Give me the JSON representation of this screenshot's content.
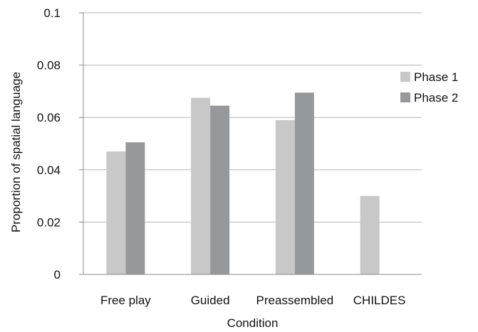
{
  "chart_data": {
    "type": "bar",
    "title": "",
    "xlabel": "Condition",
    "ylabel": "Proportion of spatial language",
    "categories": [
      "Free play",
      "Guided",
      "Preassembled",
      "CHILDES"
    ],
    "series": [
      {
        "name": "Phase 1",
        "color": "#c8c8c9",
        "values": [
          0.047,
          0.0675,
          0.059,
          0.03
        ]
      },
      {
        "name": "Phase 2",
        "color": "#97989b",
        "values": [
          0.0505,
          0.0645,
          0.0695,
          null
        ]
      }
    ],
    "ylim": [
      0,
      0.1
    ],
    "yticks": [
      "0",
      "0.02",
      "0.04",
      "0.06",
      "0.08",
      "0.1"
    ],
    "grid": true,
    "legend_position": "right"
  }
}
